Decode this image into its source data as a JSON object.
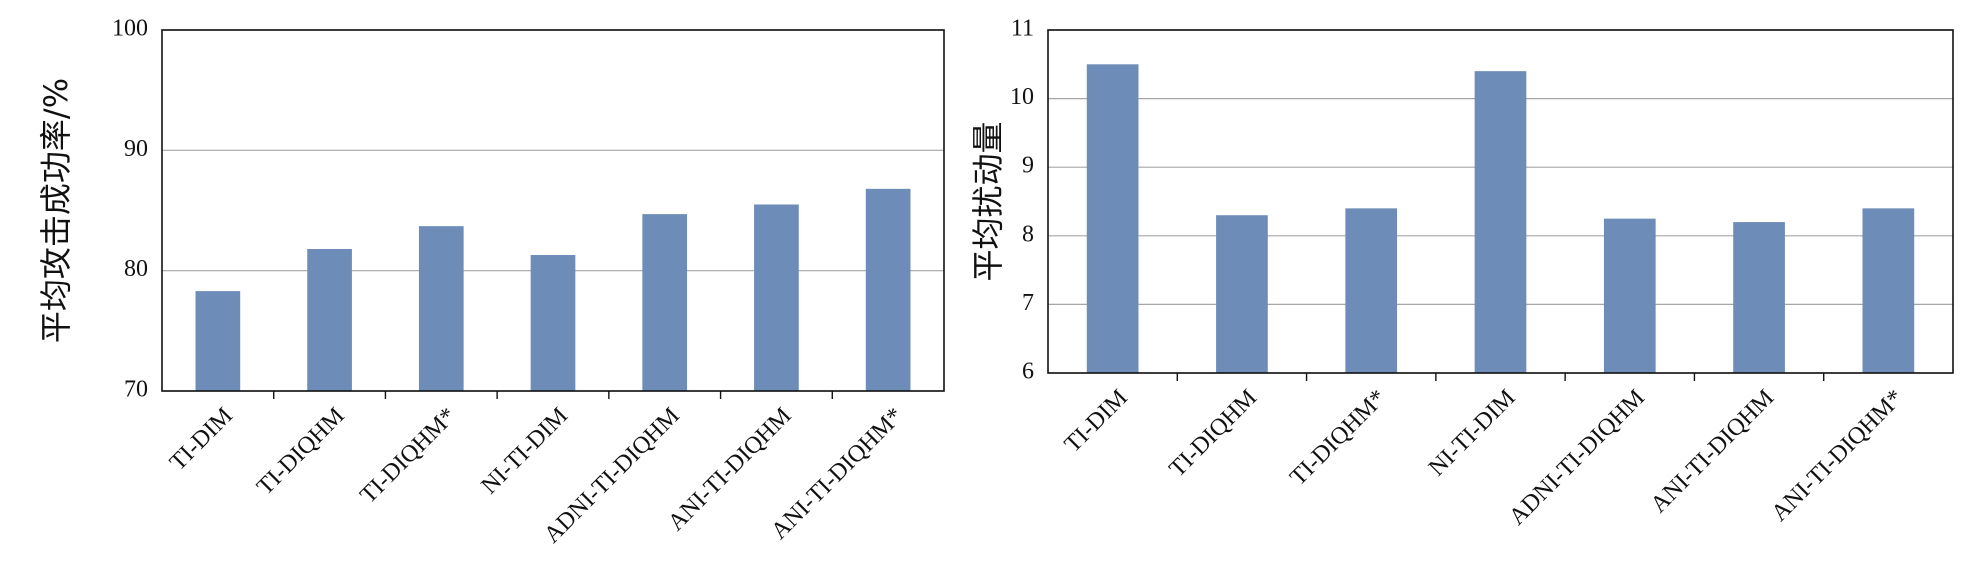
{
  "chart_data": [
    {
      "type": "bar",
      "y_label": "平均攻击成功率/%",
      "categories": [
        "TI-DIM",
        "TI-DIQHM",
        "TI-DIQHM*",
        "NI-TI-DIM",
        "ADNI-TI-DIQHM",
        "ANI-TI-DIQHM",
        "ANI-TI-DIQHM*"
      ],
      "values": [
        78.3,
        81.8,
        83.7,
        81.3,
        84.7,
        85.5,
        86.8
      ],
      "color": "#6d8db8",
      "ylim": [
        70,
        100
      ],
      "yticks": [
        70,
        80,
        90,
        100
      ],
      "grid": true
    },
    {
      "type": "bar",
      "y_label": "平均扰动量",
      "categories": [
        "TI-DIM",
        "TI-DIQHM",
        "TI-DIQHM*",
        "NI-TI-DIM",
        "ADNI-TI-DIQHM",
        "ANI-TI-DIQHM",
        "ANI-TI-DIQHM*"
      ],
      "values": [
        10.5,
        8.3,
        8.4,
        10.4,
        8.25,
        8.2,
        8.4
      ],
      "color": "#6d8db8",
      "ylim": [
        6,
        11
      ],
      "yticks": [
        6,
        7,
        8,
        9,
        10,
        11
      ],
      "grid": true
    }
  ]
}
